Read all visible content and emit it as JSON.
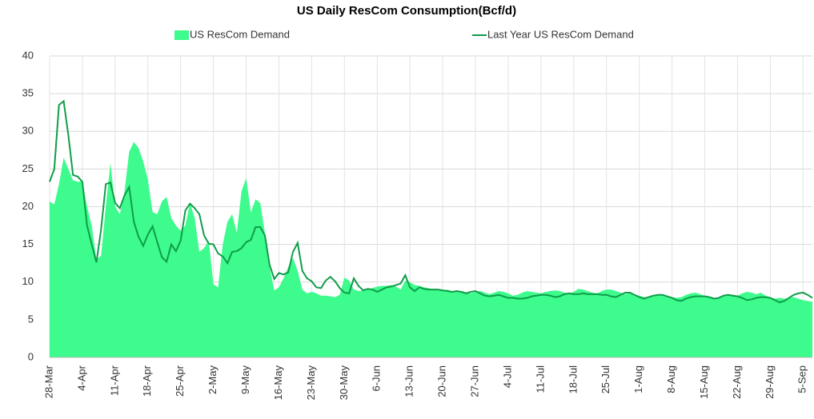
{
  "chart_data": {
    "type": "area_line",
    "title": "US Daily ResCom Consumption(Bcf/d)",
    "categories": [
      "28-Mar",
      null,
      null,
      null,
      null,
      null,
      null,
      "4-Apr",
      null,
      null,
      null,
      null,
      null,
      null,
      "11-Apr",
      null,
      null,
      null,
      null,
      null,
      null,
      "18-Apr",
      null,
      null,
      null,
      null,
      null,
      null,
      "25-Apr",
      null,
      null,
      null,
      null,
      null,
      null,
      "2-May",
      null,
      null,
      null,
      null,
      null,
      null,
      "9-May",
      null,
      null,
      null,
      null,
      null,
      null,
      "16-May",
      null,
      null,
      null,
      null,
      null,
      null,
      "23-May",
      null,
      null,
      null,
      null,
      null,
      null,
      "30-May",
      null,
      null,
      null,
      null,
      null,
      null,
      "6-Jun",
      null,
      null,
      null,
      null,
      null,
      null,
      "13-Jun",
      null,
      null,
      null,
      null,
      null,
      null,
      "20-Jun",
      null,
      null,
      null,
      null,
      null,
      null,
      "27-Jun",
      null,
      null,
      null,
      null,
      null,
      null,
      "4-Jul",
      null,
      null,
      null,
      null,
      null,
      null,
      "11-Jul",
      null,
      null,
      null,
      null,
      null,
      null,
      "18-Jul",
      null,
      null,
      null,
      null,
      null,
      null,
      "25-Jul",
      null,
      null,
      null,
      null,
      null,
      null,
      "1-Aug",
      null,
      null,
      null,
      null,
      null,
      null,
      "8-Aug",
      null,
      null,
      null,
      null,
      null,
      null,
      "15-Aug",
      null,
      null,
      null,
      null,
      null,
      null,
      "22-Aug",
      null,
      null,
      null,
      null,
      null,
      null,
      "29-Aug",
      null,
      null,
      null,
      null,
      null,
      null,
      "5-Sep",
      null,
      null
    ],
    "series": [
      {
        "name": "US ResCom Demand",
        "kind": "area",
        "color": "#3dfb8c",
        "values": [
          20.7,
          20.3,
          23,
          26.5,
          25,
          23.5,
          23.3,
          23.4,
          20,
          17.5,
          13,
          13.5,
          20,
          25.8,
          20,
          19,
          22,
          27.3,
          28.6,
          27.8,
          26,
          23.6,
          19.3,
          19,
          20.7,
          21.3,
          18.5,
          17.5,
          16.8,
          17.5,
          20.5,
          18.5,
          14,
          14.5,
          15.5,
          9.7,
          9.3,
          15,
          18,
          19,
          16.5,
          22,
          23.8,
          19.2,
          21,
          20.5,
          16.5,
          12,
          8.9,
          9.3,
          10.5,
          12,
          13.2,
          11.5,
          9,
          8.5,
          8.7,
          8.5,
          8.2,
          8.2,
          8.1,
          8,
          8.3,
          10.6,
          10.2,
          9,
          8.8,
          8.9,
          9,
          9.2,
          9.4,
          9.5,
          9.5,
          9.6,
          9.4,
          9,
          10.2,
          10,
          9.6,
          9.5,
          9.3,
          9.2,
          9,
          9,
          8.9,
          9,
          8.8,
          8.7,
          8.8,
          8.6,
          8.5,
          8.7,
          8.8,
          8.6,
          8.4,
          8.6,
          8.8,
          8.7,
          8.5,
          8.2,
          8.3,
          8.6,
          8.8,
          8.7,
          8.6,
          8.5,
          8.7,
          8.8,
          8.9,
          8.8,
          8.6,
          8.5,
          8.7,
          9.1,
          9,
          8.8,
          8.6,
          8.5,
          8.8,
          9,
          9,
          8.8,
          8.6,
          8.4,
          8.5,
          8.3,
          8.2,
          8,
          8,
          8.2,
          8.4,
          8.3,
          8.2,
          8,
          7.9,
          8,
          8.3,
          8.5,
          8.6,
          8.4,
          8.2,
          8,
          7.8,
          7.9,
          8.2,
          8.4,
          8.3,
          8.2,
          8.5,
          8.7,
          8.6,
          8.4,
          8.6,
          8.2,
          8,
          7.8,
          7.9,
          7.8,
          7.9,
          8,
          7.8,
          7.6,
          7.5,
          7.4
        ]
      },
      {
        "name": "Last Year US ResCom Demand",
        "kind": "line",
        "color": "#0f9d4a",
        "values": [
          23.3,
          25,
          33.5,
          34,
          29.5,
          24.2,
          24,
          23.3,
          17.5,
          15,
          12.6,
          17,
          23,
          23.2,
          20.5,
          19.8,
          21.5,
          22.6,
          18,
          16,
          14.8,
          16.3,
          17.4,
          15.3,
          13.3,
          12.7,
          15,
          14.1,
          15.5,
          19.5,
          20.4,
          19.8,
          19,
          16.2,
          15.1,
          15,
          13.8,
          13.4,
          12.5,
          14,
          14.1,
          14.5,
          15.3,
          15.6,
          17.3,
          17.3,
          16.2,
          12.3,
          10.4,
          11.2,
          11,
          11.3,
          14,
          15.2,
          11.5,
          10.5,
          10.1,
          9.3,
          9.2,
          10.2,
          10.7,
          10.1,
          9.2,
          8.6,
          8.5,
          10.5,
          9.5,
          8.9,
          9.1,
          9,
          8.7,
          9,
          9.3,
          9.4,
          9.6,
          9.8,
          10.9,
          9.3,
          8.8,
          9.3,
          9.1,
          9,
          9,
          9,
          8.9,
          8.8,
          8.7,
          8.8,
          8.7,
          8.5,
          8.7,
          8.8,
          8.5,
          8.2,
          8.1,
          8.2,
          8.3,
          8.1,
          7.9,
          7.9,
          7.8,
          7.8,
          7.9,
          8.1,
          8.2,
          8.3,
          8.3,
          8.2,
          8,
          8.1,
          8.4,
          8.5,
          8.4,
          8.4,
          8.5,
          8.4,
          8.4,
          8.4,
          8.3,
          8.3,
          8.1,
          8,
          8.3,
          8.6,
          8.6,
          8.3,
          8,
          7.8,
          8,
          8.2,
          8.3,
          8.3,
          8.1,
          7.9,
          7.6,
          7.5,
          7.8,
          8,
          8.1,
          8.1,
          8.1,
          8,
          7.8,
          7.9,
          8.2,
          8.3,
          8.2,
          8.1,
          7.9,
          7.6,
          7.7,
          7.9,
          8,
          8,
          7.9,
          7.6,
          7.3,
          7.5,
          7.9,
          8.3,
          8.5,
          8.6,
          8.3,
          7.9
        ]
      }
    ],
    "ylim": [
      0,
      40
    ],
    "yticks": [
      0,
      5,
      10,
      15,
      20,
      25,
      30,
      35,
      40
    ],
    "grid": true
  }
}
